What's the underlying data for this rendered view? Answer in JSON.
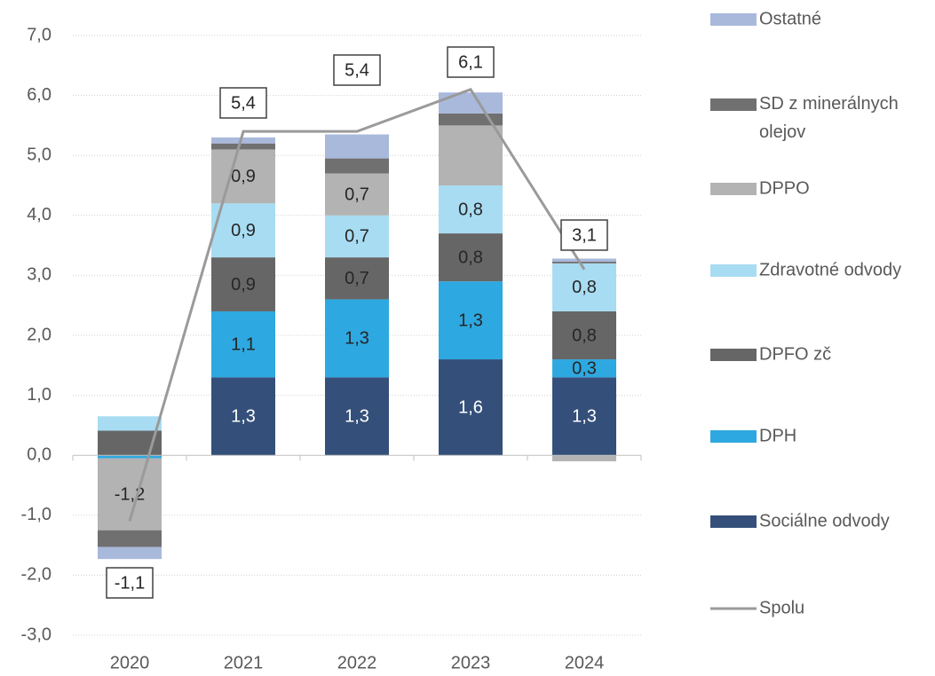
{
  "chart_data": {
    "type": "stacked_bar_line",
    "categories": [
      "2020",
      "2021",
      "2022",
      "2023",
      "2024"
    ],
    "ylim": [
      -3,
      7
    ],
    "yticks": [
      {
        "value": -3,
        "label": "-3,0"
      },
      {
        "value": -2,
        "label": "-2,0"
      },
      {
        "value": -1,
        "label": "-1,0"
      },
      {
        "value": 0,
        "label": "0,0"
      },
      {
        "value": 1,
        "label": "1,0"
      },
      {
        "value": 2,
        "label": "2,0"
      },
      {
        "value": 3,
        "label": "3,0"
      },
      {
        "value": 4,
        "label": "4,0"
      },
      {
        "value": 5,
        "label": "5,0"
      },
      {
        "value": 6,
        "label": "6,0"
      },
      {
        "value": 7,
        "label": "7,0"
      }
    ],
    "grid": true,
    "legend": "right",
    "series": [
      {
        "name": "Sociálne odvody",
        "color": "#34507a",
        "values": [
          0,
          1.3,
          1.3,
          1.6,
          1.3
        ],
        "value_labels": [
          null,
          "1,3",
          "1,3",
          "1,6",
          "1,3"
        ]
      },
      {
        "name": "DPH",
        "color": "#2ea8e0",
        "values": [
          -0.05,
          1.1,
          1.3,
          1.3,
          0.3
        ],
        "value_labels": [
          null,
          "1,1",
          "1,3",
          "1,3",
          "0,3"
        ]
      },
      {
        "name": "DPFO zč",
        "color": "#666666",
        "values": [
          0.41,
          0.9,
          0.7,
          0.8,
          0.8
        ],
        "value_labels": [
          null,
          "0,9",
          "0,7",
          "0,8",
          "0,8"
        ]
      },
      {
        "name": "Zdravotné odvody",
        "color": "#a8dcf2",
        "values": [
          0.24,
          0.9,
          0.7,
          0.8,
          0.8
        ],
        "value_labels": [
          null,
          "0,9",
          "0,7",
          "0,8",
          "0,8"
        ]
      },
      {
        "name": "DPPO",
        "color": "#b3b3b3",
        "values": [
          -1.2,
          0.9,
          0.7,
          1.0,
          -0.1
        ],
        "value_labels": [
          "-1,2",
          "0,9",
          "0,7",
          null,
          null
        ]
      },
      {
        "name": "SD z minerálnych olejov",
        "color": "#707070",
        "values": [
          -0.28,
          0.1,
          0.25,
          0.2,
          0.03
        ]
      },
      {
        "name": "Ostatné",
        "color": "#a9b9dc",
        "values": [
          -0.2,
          0.1,
          0.4,
          0.35,
          0.05
        ]
      },
      {
        "name": "Spolu",
        "color": "#9a9a9a",
        "type": "line",
        "values": [
          -1.1,
          5.4,
          5.4,
          6.1,
          3.1
        ],
        "value_labels": [
          "-1,1",
          "5,4",
          "5,4",
          "6,1",
          "3,1"
        ]
      }
    ]
  }
}
